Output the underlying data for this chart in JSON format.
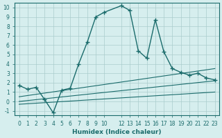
{
  "xlabel": "Humidex (Indice chaleur)",
  "bg_color": "#d6eeee",
  "grid_color": "#aacccc",
  "line_color": "#1a6b6b",
  "line1_x": [
    0,
    1,
    2,
    3,
    4,
    5,
    6,
    7,
    8,
    9,
    10,
    12,
    13,
    14,
    15,
    16,
    17,
    18,
    19,
    20,
    21,
    22,
    23
  ],
  "line1_y": [
    1.7,
    1.3,
    1.5,
    0.2,
    -1.2,
    1.2,
    1.4,
    4.0,
    6.3,
    9.0,
    9.5,
    10.2,
    9.7,
    5.4,
    4.6,
    8.7,
    5.3,
    3.5,
    3.1,
    2.8,
    3.0,
    2.5,
    2.3
  ],
  "line2_x": [
    0,
    23
  ],
  "line2_y": [
    0.5,
    3.5
  ],
  "line3_x": [
    0,
    23
  ],
  "line3_y": [
    0.0,
    2.2
  ],
  "line4_x": [
    0,
    23
  ],
  "line4_y": [
    -0.3,
    1.0
  ],
  "xlim": [
    -0.5,
    23.5
  ],
  "ylim": [
    -1.5,
    10.5
  ],
  "yticks": [
    -1,
    0,
    1,
    2,
    3,
    4,
    5,
    6,
    7,
    8,
    9,
    10
  ],
  "xticks": [
    0,
    1,
    2,
    3,
    4,
    5,
    6,
    7,
    8,
    9,
    10,
    12,
    13,
    14,
    15,
    16,
    17,
    18,
    19,
    20,
    21,
    22,
    23
  ]
}
